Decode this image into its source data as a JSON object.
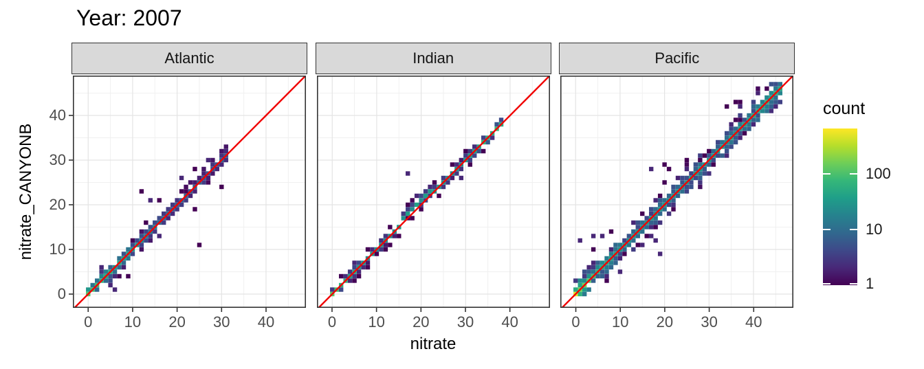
{
  "title": "Year: 2007",
  "axes": {
    "x_label": "nitrate",
    "y_label": "nitrate_CANYONB",
    "x_ticks": [
      0,
      10,
      20,
      30,
      40
    ],
    "y_ticks": [
      0,
      10,
      20,
      30,
      40
    ],
    "minor_ticks": [
      5,
      15,
      25,
      35,
      45
    ]
  },
  "legend": {
    "title": "count",
    "ticks": [
      1,
      10,
      100
    ],
    "transform": "log10",
    "max_count": 650
  },
  "colors": {
    "viridis": [
      "#440154",
      "#482878",
      "#3e4989",
      "#31688e",
      "#26828e",
      "#1f9e89",
      "#35b779",
      "#6ece58",
      "#b5de2b",
      "#fde725"
    ],
    "ref_line": "#f00000",
    "strip_fill": "#d9d9d9",
    "strip_border": "#333333",
    "panel_border": "#333333",
    "panel_bg": "#ffffff",
    "grid_major": "#e4e4e4",
    "grid_minor": "#f0f0f0",
    "tick_mark": "#333333",
    "tick_label": "#4d4d4d",
    "strip_text": "#141414"
  },
  "chart_data": {
    "type": "heatmap",
    "bin_type": "bin2d",
    "title": "Year: 2007",
    "xlabel": "nitrate",
    "ylabel": "nitrate_CANYONB",
    "x_ticks": [
      0,
      10,
      20,
      30,
      40
    ],
    "y_ticks": [
      0,
      10,
      20,
      30,
      40
    ],
    "x_range": [
      -3.44,
      48.97
    ],
    "y_range": [
      -3.08,
      48.92
    ],
    "bin_width": 1,
    "grid": true,
    "legend_position": "right",
    "color_scale": {
      "palette": "viridis",
      "transform": "log10",
      "legend_ticks": [
        1,
        10,
        100
      ],
      "max_count": 650
    },
    "reference_line": {
      "slope": 1,
      "intercept": 0
    },
    "facets": [
      {
        "label": "Atlantic",
        "seed": 7,
        "x_max": 31,
        "peak": 140,
        "decay": 2.5,
        "base": 7,
        "sd": 1.15,
        "side_boost": 0.2,
        "bumps": [
          {
            "center": 8,
            "width": 30,
            "amp": 25
          }
        ],
        "extras": [
          {
            "x0": 3,
            "x1": 18,
            "dy0": -3.8,
            "dy1": 3.8,
            "rate": 2.0,
            "count": 2
          },
          {
            "x0": 18,
            "x1": 30,
            "dy0": -2.5,
            "dy1": 2.5,
            "rate": 1.1,
            "count": 1
          }
        ],
        "outliers": [
          [
            25,
            11
          ],
          [
            12,
            23
          ],
          [
            14,
            21
          ],
          [
            16,
            21
          ],
          [
            24,
            19
          ],
          [
            30,
            24
          ],
          [
            27,
            30
          ],
          [
            24,
            28
          ],
          [
            6,
            1
          ],
          [
            9,
            4
          ],
          [
            21,
            26
          ]
        ]
      },
      {
        "label": "Indian",
        "seed": 13,
        "x_max": 38,
        "peak": 100,
        "decay": 4,
        "base": 14,
        "sd": 0.55,
        "side_boost": 0.6,
        "bumps": [
          {
            "center": 36,
            "width": 25,
            "amp": 55
          },
          {
            "center": 20,
            "width": 60,
            "amp": 18
          }
        ],
        "offsets": [
          {
            "from": 16,
            "to": 22,
            "dy": 1
          }
        ],
        "extras": [
          {
            "x0": 2,
            "x1": 36,
            "dy0": -1.7,
            "dy1": 1.7,
            "rate": 0.7,
            "count": 1
          },
          {
            "x0": 16,
            "x1": 23,
            "dy0": 0.8,
            "dy1": 3.2,
            "rate": 2.4,
            "count": 4
          },
          {
            "x0": 24,
            "x1": 33,
            "dy0": -1.2,
            "dy1": 2.2,
            "rate": 1.2,
            "count": 2
          }
        ],
        "outliers": [
          [
            17,
            27
          ],
          [
            29,
            26
          ],
          [
            5,
            7
          ]
        ]
      },
      {
        "label": "Pacific",
        "seed": 21,
        "x_max": 46,
        "peak": 200,
        "decay": 3,
        "base": 30,
        "sd": 1.6,
        "side_boost": 0.25,
        "origin_count": 520,
        "bumps": [
          {
            "center": 44,
            "width": 60,
            "amp": 25
          }
        ],
        "extras": [
          {
            "x0": 0,
            "x1": 5,
            "dy0": 0.5,
            "dy1": 3.4,
            "rate": 2.0,
            "count": 5
          },
          {
            "x0": 6,
            "x1": 22,
            "dy0": -5.0,
            "dy1": -1.5,
            "rate": 1.5,
            "count": 2
          },
          {
            "x0": 3,
            "x1": 44,
            "dy0": -3.4,
            "dy1": 3.4,
            "rate": 2.2,
            "count": 2
          },
          {
            "x0": 20,
            "x1": 27,
            "dy0": 3.5,
            "dy1": 7.0,
            "rate": 1.0,
            "count": 1
          },
          {
            "x0": 33,
            "x1": 38,
            "dy0": 4.0,
            "dy1": 6.5,
            "rate": 0.7,
            "count": 1
          }
        ],
        "outliers": [
          [
            1,
            12
          ],
          [
            4,
            13
          ],
          [
            6,
            13
          ],
          [
            4,
            10
          ],
          [
            17,
            28
          ],
          [
            20,
            29
          ],
          [
            21,
            28
          ],
          [
            19,
            9
          ],
          [
            18,
            12
          ],
          [
            34,
            42
          ],
          [
            36,
            43
          ],
          [
            37,
            42
          ],
          [
            45,
            42
          ],
          [
            8,
            14
          ]
        ]
      }
    ]
  }
}
